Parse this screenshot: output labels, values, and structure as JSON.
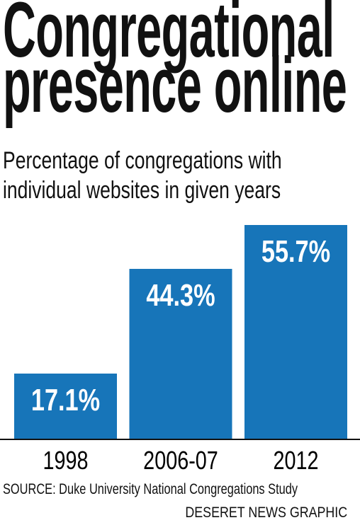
{
  "chart_data": {
    "type": "bar",
    "title": "Congregational presence online",
    "subtitle": "Percentage of congregations with individual websites in given years",
    "categories": [
      "1998",
      "2006-07",
      "2012"
    ],
    "values": [
      17.1,
      44.3,
      55.7
    ],
    "value_labels": [
      "17.1%",
      "44.3%",
      "55.7%"
    ],
    "color": "#1775b9",
    "source": "SOURCE: Duke University National Congregations Study",
    "credit": "DESERET NEWS GRAPHIC"
  }
}
